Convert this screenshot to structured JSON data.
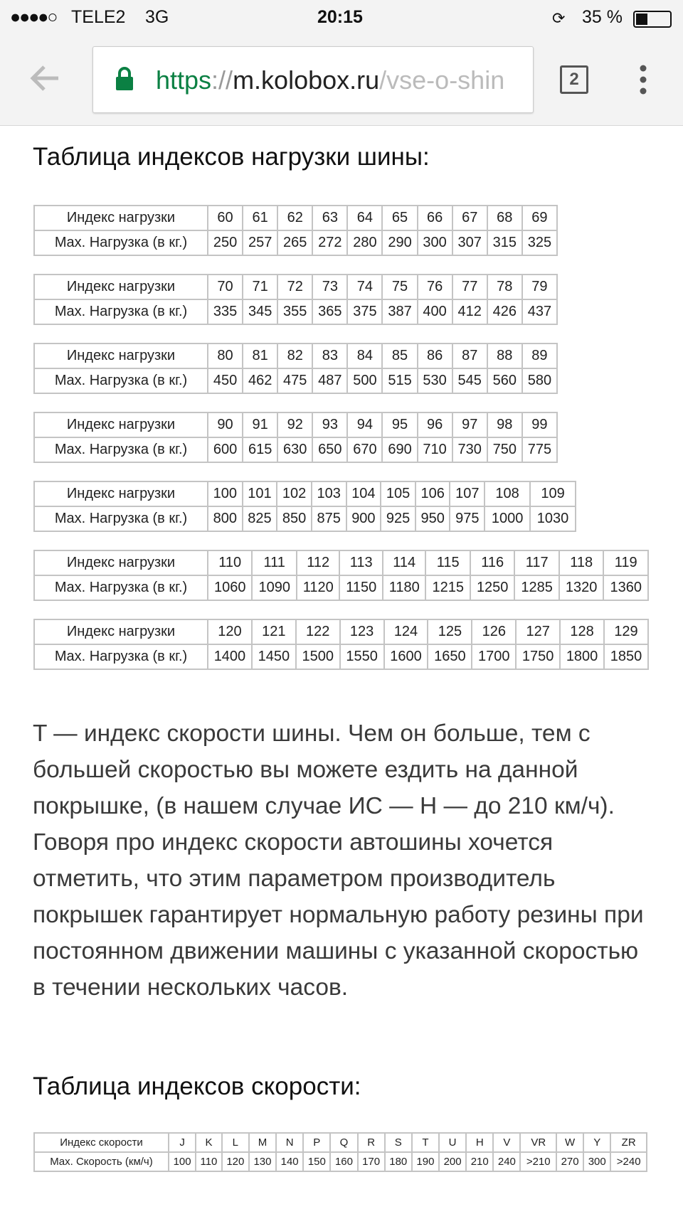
{
  "status_bar": {
    "carrier": "TELE2",
    "network": "3G",
    "time": "20:15",
    "battery": "35 %"
  },
  "url_bar": {
    "scheme": "https",
    "separator": "://",
    "host": "m.kolobox.ru",
    "path": "/vse-o-shin",
    "tabs": "2"
  },
  "load_heading": "Таблица индексов нагрузки шины:",
  "load_tables": [
    {
      "index_label": "Индекс нагрузки",
      "load_label": "Max. Нагрузка (в кг.)",
      "indexes": [
        60,
        61,
        62,
        63,
        64,
        65,
        66,
        67,
        68,
        69
      ],
      "loads": [
        250,
        257,
        265,
        272,
        280,
        290,
        300,
        307,
        315,
        325
      ]
    },
    {
      "index_label": "Индекс нагрузки",
      "load_label": "Max. Нагрузка (в кг.)",
      "indexes": [
        70,
        71,
        72,
        73,
        74,
        75,
        76,
        77,
        78,
        79
      ],
      "loads": [
        335,
        345,
        355,
        365,
        375,
        387,
        400,
        412,
        426,
        437
      ]
    },
    {
      "index_label": "Индекс нагрузки",
      "load_label": "Max. Нагрузка (в кг.)",
      "indexes": [
        80,
        81,
        82,
        83,
        84,
        85,
        86,
        87,
        88,
        89
      ],
      "loads": [
        450,
        462,
        475,
        487,
        500,
        515,
        530,
        545,
        560,
        580
      ]
    },
    {
      "index_label": "Индекс нагрузки",
      "load_label": "Max. Нагрузка (в кг.)",
      "indexes": [
        90,
        91,
        92,
        93,
        94,
        95,
        96,
        97,
        98,
        99
      ],
      "loads": [
        600,
        615,
        630,
        650,
        670,
        690,
        710,
        730,
        750,
        775
      ]
    },
    {
      "index_label": "Индекс нагрузки",
      "load_label": "Max. Нагрузка (в кг.)",
      "indexes": [
        100,
        101,
        102,
        103,
        104,
        105,
        106,
        107,
        108,
        109
      ],
      "loads": [
        800,
        825,
        850,
        875,
        900,
        925,
        950,
        975,
        1000,
        1030
      ]
    },
    {
      "index_label": "Индекс нагрузки",
      "load_label": "Max. Нагрузка (в кг.)",
      "indexes": [
        110,
        111,
        112,
        113,
        114,
        115,
        116,
        117,
        118,
        119
      ],
      "loads": [
        1060,
        1090,
        1120,
        1150,
        1180,
        1215,
        1250,
        1285,
        1320,
        1360
      ]
    },
    {
      "index_label": "Индекс нагрузки",
      "load_label": "Max. Нагрузка (в кг.)",
      "indexes": [
        120,
        121,
        122,
        123,
        124,
        125,
        126,
        127,
        128,
        129
      ],
      "loads": [
        1400,
        1450,
        1500,
        1550,
        1600,
        1650,
        1700,
        1750,
        1800,
        1850
      ]
    }
  ],
  "paragraph": "T — индекс скорости шины. Чем он больше, тем с большей скоростью вы можете ездить на данной покрышке, (в нашем случае ИС — H — до 210 км/ч). Говоря про индекс скорости автошины хочется отметить, что этим параметром производитель покрышек гарантирует нормальную работу резины при постоянном движении машины с указанной скоростью в течении нескольких часов.",
  "speed_heading": "Таблица индексов скорости:",
  "speed_table": {
    "index_label": "Индекс скорости",
    "speed_label": "Max. Скорость (км/ч)",
    "indexes": [
      "J",
      "K",
      "L",
      "M",
      "N",
      "P",
      "Q",
      "R",
      "S",
      "T",
      "U",
      "H",
      "V",
      "VR",
      "W",
      "Y",
      "ZR"
    ],
    "speeds": [
      "100",
      "110",
      "120",
      "130",
      "140",
      "150",
      "160",
      "170",
      "180",
      "190",
      "200",
      "210",
      "240",
      ">210",
      "270",
      "300",
      ">240"
    ]
  }
}
